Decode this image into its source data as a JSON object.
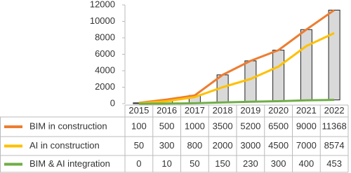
{
  "chart_data": {
    "type": "line",
    "categories": [
      "2015",
      "2016",
      "2017",
      "2018",
      "2019",
      "2020",
      "2021",
      "2022"
    ],
    "series": [
      {
        "name": "BIM in construction",
        "color": "#ed7d31",
        "values": [
          100,
          500,
          1000,
          3500,
          5200,
          6500,
          9000,
          11368
        ]
      },
      {
        "name": "AI in construction",
        "color": "#ffc000",
        "values": [
          50,
          300,
          800,
          2000,
          3000,
          4500,
          7000,
          8574
        ]
      },
      {
        "name": "BIM & AI integration",
        "color": "#70ad47",
        "values": [
          0,
          10,
          50,
          150,
          230,
          300,
          400,
          453
        ]
      }
    ],
    "ylim": [
      0,
      12000
    ],
    "yticks": [
      0,
      2000,
      4000,
      6000,
      8000,
      10000,
      12000
    ],
    "up_down_bars": true,
    "data_table": true
  }
}
